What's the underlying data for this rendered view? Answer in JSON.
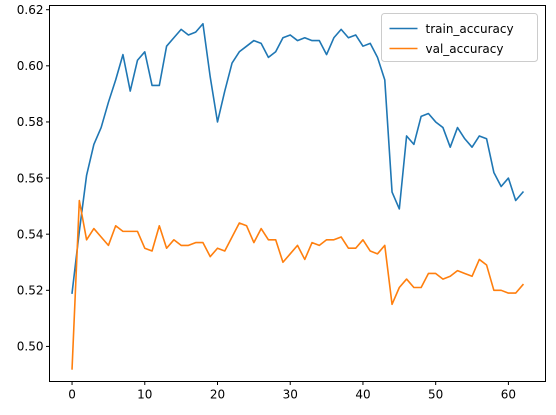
{
  "chart_data": {
    "type": "line",
    "title": "",
    "xlabel": "",
    "ylabel": "",
    "xlim": [
      -3.1,
      65.1
    ],
    "ylim": [
      0.4875,
      0.6215
    ],
    "xticks": [
      0,
      10,
      20,
      30,
      40,
      50,
      60
    ],
    "yticks": [
      0.5,
      0.52,
      0.54,
      0.56,
      0.58,
      0.6,
      0.62
    ],
    "xtick_labels": [
      "0",
      "10",
      "20",
      "30",
      "40",
      "50",
      "60"
    ],
    "ytick_labels": [
      "0.50",
      "0.52",
      "0.54",
      "0.56",
      "0.58",
      "0.60",
      "0.62"
    ],
    "grid": false,
    "legend_position": "top-right",
    "x": [
      0,
      1,
      2,
      3,
      4,
      5,
      6,
      7,
      8,
      9,
      10,
      11,
      12,
      13,
      14,
      15,
      16,
      17,
      18,
      19,
      20,
      21,
      22,
      23,
      24,
      25,
      26,
      27,
      28,
      29,
      30,
      31,
      32,
      33,
      34,
      35,
      36,
      37,
      38,
      39,
      40,
      41,
      42,
      43,
      44,
      45,
      46,
      47,
      48,
      49,
      50,
      51,
      52,
      53,
      54,
      55,
      56,
      57,
      58,
      59,
      60,
      61,
      62
    ],
    "series": [
      {
        "name": "train_accuracy",
        "color": "#1f77b4",
        "values": [
          0.519,
          0.541,
          0.561,
          0.572,
          0.578,
          0.587,
          0.595,
          0.604,
          0.591,
          0.602,
          0.605,
          0.593,
          0.593,
          0.607,
          0.61,
          0.613,
          0.611,
          0.612,
          0.615,
          0.596,
          0.58,
          0.591,
          0.601,
          0.605,
          0.607,
          0.609,
          0.608,
          0.603,
          0.605,
          0.61,
          0.611,
          0.609,
          0.61,
          0.609,
          0.609,
          0.604,
          0.61,
          0.613,
          0.61,
          0.611,
          0.607,
          0.608,
          0.603,
          0.595,
          0.555,
          0.549,
          0.575,
          0.572,
          0.582,
          0.583,
          0.58,
          0.578,
          0.571,
          0.578,
          0.574,
          0.571,
          0.575,
          0.574,
          0.562,
          0.557,
          0.56,
          0.552,
          0.555
        ]
      },
      {
        "name": "val_accuracy",
        "color": "#ff7f0e",
        "values": [
          0.492,
          0.552,
          0.538,
          0.542,
          0.539,
          0.536,
          0.543,
          0.541,
          0.541,
          0.541,
          0.535,
          0.534,
          0.543,
          0.535,
          0.538,
          0.536,
          0.536,
          0.537,
          0.537,
          0.532,
          0.535,
          0.534,
          0.539,
          0.544,
          0.543,
          0.537,
          0.542,
          0.538,
          0.538,
          0.53,
          0.533,
          0.536,
          0.531,
          0.537,
          0.536,
          0.538,
          0.538,
          0.539,
          0.535,
          0.535,
          0.538,
          0.534,
          0.533,
          0.536,
          0.515,
          0.521,
          0.524,
          0.521,
          0.521,
          0.526,
          0.526,
          0.524,
          0.525,
          0.527,
          0.526,
          0.525,
          0.531,
          0.529,
          0.52,
          0.52,
          0.519,
          0.519,
          0.522
        ]
      }
    ]
  }
}
